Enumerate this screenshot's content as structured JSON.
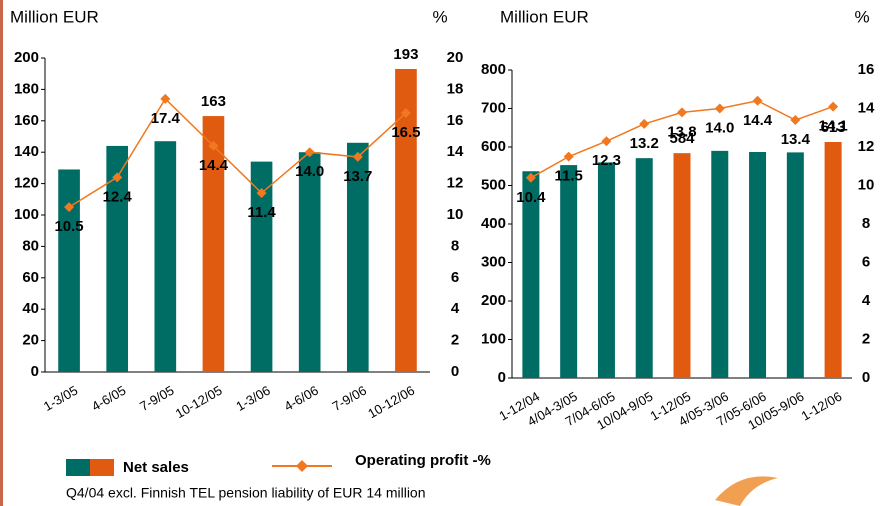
{
  "chart_data": [
    {
      "type": "bar_line",
      "y_axis_label": "Million EUR",
      "y2_axis_label": "%",
      "categories": [
        "1-3/05",
        "4-6/05",
        "7-9/05",
        "10-12/05",
        "1-3/06",
        "4-6/06",
        "7-9/06",
        "10-12/06"
      ],
      "series": [
        {
          "name": "Net sales",
          "type": "bar",
          "colors": [
            "#006d64",
            "#006d64",
            "#006d64",
            "#e05a10",
            "#006d64",
            "#006d64",
            "#006d64",
            "#e05a10"
          ],
          "values": [
            129,
            144,
            147,
            163,
            134,
            140,
            146,
            193
          ],
          "value_labels": [
            null,
            null,
            null,
            "163",
            null,
            null,
            null,
            "193"
          ]
        },
        {
          "name": "Operating profit -%",
          "type": "line",
          "axis": "y2",
          "color": "#f07820",
          "values": [
            10.5,
            12.4,
            17.4,
            14.4,
            11.4,
            14.0,
            13.7,
            16.5
          ],
          "value_labels": [
            "10.5",
            "12.4",
            "17.4",
            "14.4",
            "11.4",
            "14.0",
            "13.7",
            "16.5"
          ]
        }
      ],
      "ylim": [
        0,
        200
      ],
      "yticks": [
        0,
        20,
        40,
        60,
        80,
        100,
        120,
        140,
        160,
        180,
        200
      ],
      "y2lim": [
        0,
        20
      ],
      "y2ticks": [
        0,
        2,
        4,
        6,
        8,
        10,
        12,
        14,
        16,
        18,
        20
      ]
    },
    {
      "type": "bar_line",
      "y_axis_label": "Million EUR",
      "y2_axis_label": "%",
      "categories": [
        "1-12/04",
        "4/04-3/05",
        "7/04-6/05",
        "10/04-9/05",
        "1-12/05",
        "4/05-3/06",
        "7/05-6/06",
        "10/05-9/06",
        "1-12/06"
      ],
      "series": [
        {
          "type": "bar",
          "colors": [
            "#006d64",
            "#006d64",
            "#006d64",
            "#006d64",
            "#e05a10",
            "#006d64",
            "#006d64",
            "#006d64",
            "#e05a10"
          ],
          "values": [
            537,
            553,
            560,
            571,
            584,
            590,
            587,
            586,
            613
          ],
          "value_labels": [
            null,
            null,
            null,
            null,
            "584",
            null,
            null,
            null,
            "613"
          ]
        },
        {
          "type": "line",
          "axis": "y2",
          "color": "#f07820",
          "values": [
            10.4,
            11.5,
            12.3,
            13.2,
            13.8,
            14.0,
            14.4,
            13.4,
            14.1
          ],
          "value_labels": [
            "10.4",
            "11.5",
            "12.3",
            "13.2",
            "13.8",
            "14.0",
            "14.4",
            "13.4",
            "14.1"
          ]
        }
      ],
      "ylim": [
        0,
        800
      ],
      "yticks": [
        0,
        100,
        200,
        300,
        400,
        500,
        600,
        700,
        800
      ],
      "y2lim": [
        0,
        16
      ],
      "y2ticks": [
        0,
        2,
        4,
        6,
        8,
        10,
        12,
        14,
        16
      ]
    }
  ],
  "footnote": "Q4/04 excl. Finnish TEL pension liability of EUR 14 million"
}
